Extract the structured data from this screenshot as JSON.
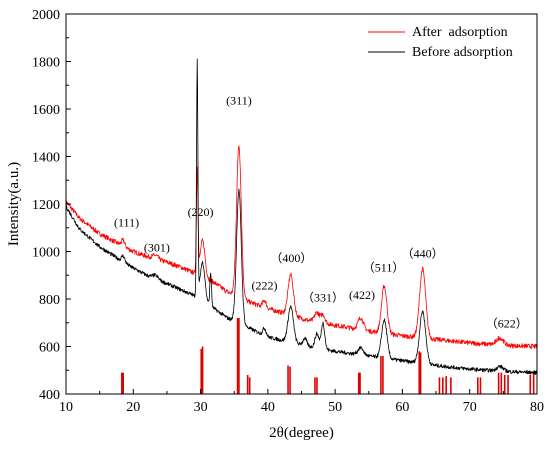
{
  "chart_data": {
    "type": "line",
    "xlabel": "2θ(degree)",
    "ylabel": "Intensity(a.u.)",
    "xlim": [
      10,
      80
    ],
    "ylim": [
      400,
      2000
    ],
    "xticks": [
      10,
      20,
      30,
      40,
      50,
      60,
      70,
      80
    ],
    "yticks": [
      400,
      600,
      800,
      1000,
      1200,
      1400,
      1600,
      1800,
      2000
    ],
    "grid": false,
    "legend_position": "top-right",
    "series": [
      {
        "name": "After  adsorption",
        "color": "#ff0000",
        "baseline": [
          [
            10,
            1210
          ],
          [
            12,
            1140
          ],
          [
            15,
            1075
          ],
          [
            18,
            1030
          ],
          [
            20,
            1000
          ],
          [
            22,
            980
          ],
          [
            25,
            955
          ],
          [
            27,
            935
          ],
          [
            29,
            910
          ],
          [
            30,
            900
          ],
          [
            32,
            870
          ],
          [
            34,
            830
          ],
          [
            37,
            790
          ],
          [
            40,
            760
          ],
          [
            43,
            735
          ],
          [
            46,
            710
          ],
          [
            50,
            690
          ],
          [
            55,
            665
          ],
          [
            60,
            645
          ],
          [
            65,
            630
          ],
          [
            70,
            615
          ],
          [
            75,
            605
          ],
          [
            80,
            600
          ]
        ],
        "peaks": [
          [
            18.5,
            25,
            0.25
          ],
          [
            23.3,
            15,
            0.4
          ],
          [
            29.5,
            440,
            0.12
          ],
          [
            30.3,
            150,
            0.35
          ],
          [
            35.7,
            640,
            0.35
          ],
          [
            39.5,
            30,
            0.25
          ],
          [
            43.4,
            170,
            0.4
          ],
          [
            47.3,
            40,
            0.35
          ],
          [
            48.2,
            35,
            0.3
          ],
          [
            53.8,
            50,
            0.4
          ],
          [
            57.3,
            200,
            0.4
          ],
          [
            63.0,
            290,
            0.45
          ],
          [
            74.5,
            30,
            0.5
          ]
        ],
        "noise": 10
      },
      {
        "name": "Before adsorption",
        "color": "#000000",
        "baseline": [
          [
            10,
            1190
          ],
          [
            12,
            1095
          ],
          [
            15,
            1020
          ],
          [
            18,
            965
          ],
          [
            20,
            930
          ],
          [
            22,
            900
          ],
          [
            25,
            865
          ],
          [
            27,
            840
          ],
          [
            29,
            815
          ],
          [
            30,
            800
          ],
          [
            32,
            760
          ],
          [
            34,
            720
          ],
          [
            37,
            680
          ],
          [
            40,
            640
          ],
          [
            43,
            620
          ],
          [
            46,
            600
          ],
          [
            50,
            580
          ],
          [
            55,
            560
          ],
          [
            60,
            540
          ],
          [
            65,
            520
          ],
          [
            70,
            505
          ],
          [
            75,
            495
          ],
          [
            80,
            490
          ]
        ],
        "peaks": [
          [
            18.5,
            25,
            0.25
          ],
          [
            23.3,
            15,
            0.4
          ],
          [
            29.5,
            990,
            0.1
          ],
          [
            30.3,
            160,
            0.35
          ],
          [
            31.5,
            140,
            0.12
          ],
          [
            35.7,
            560,
            0.35
          ],
          [
            39.5,
            30,
            0.25
          ],
          [
            43.4,
            150,
            0.4
          ],
          [
            45.5,
            30,
            0.3
          ],
          [
            47.3,
            60,
            0.3
          ],
          [
            48.2,
            110,
            0.25
          ],
          [
            53.8,
            30,
            0.4
          ],
          [
            57.3,
            160,
            0.4
          ],
          [
            63.0,
            220,
            0.45
          ],
          [
            74.5,
            20,
            0.5
          ]
        ],
        "noise": 8
      }
    ],
    "reference_lines": {
      "color": "#dd0000",
      "lines": [
        [
          18.3,
          490
        ],
        [
          18.5,
          490
        ],
        [
          30.1,
          590
        ],
        [
          30.3,
          600
        ],
        [
          35.5,
          720
        ],
        [
          35.7,
          720
        ],
        [
          37.0,
          480
        ],
        [
          37.3,
          470
        ],
        [
          43.0,
          520
        ],
        [
          43.3,
          515
        ],
        [
          47.0,
          470
        ],
        [
          47.3,
          470
        ],
        [
          53.5,
          490
        ],
        [
          53.7,
          490
        ],
        [
          56.8,
          560
        ],
        [
          57.1,
          560
        ],
        [
          62.5,
          580
        ],
        [
          62.7,
          575
        ],
        [
          65.5,
          470
        ],
        [
          66.0,
          470
        ],
        [
          66.5,
          475
        ],
        [
          67.2,
          470
        ],
        [
          71.2,
          470
        ],
        [
          71.6,
          470
        ],
        [
          74.3,
          490
        ],
        [
          74.7,
          490
        ],
        [
          75.2,
          480
        ],
        [
          75.7,
          480
        ],
        [
          79.0,
          480
        ],
        [
          79.5,
          485
        ]
      ]
    },
    "annotations": [
      {
        "text": "(111)",
        "x": 19.0,
        "y": 1105
      },
      {
        "text": "(301)",
        "x": 23.5,
        "y": 1000
      },
      {
        "text": "(220)",
        "x": 30.0,
        "y": 1150
      },
      {
        "text": "(311)",
        "x": 35.7,
        "y": 1620
      },
      {
        "text": "(222)",
        "x": 39.5,
        "y": 840
      },
      {
        "text": "（400）",
        "x": 43.5,
        "y": 955
      },
      {
        "text": "（331）",
        "x": 48.2,
        "y": 790
      },
      {
        "text": "(422)",
        "x": 54.0,
        "y": 800
      },
      {
        "text": "（511）",
        "x": 57.2,
        "y": 915
      },
      {
        "text": "（440）",
        "x": 63.0,
        "y": 975
      },
      {
        "text": "（622）",
        "x": 75.5,
        "y": 680
      }
    ]
  }
}
